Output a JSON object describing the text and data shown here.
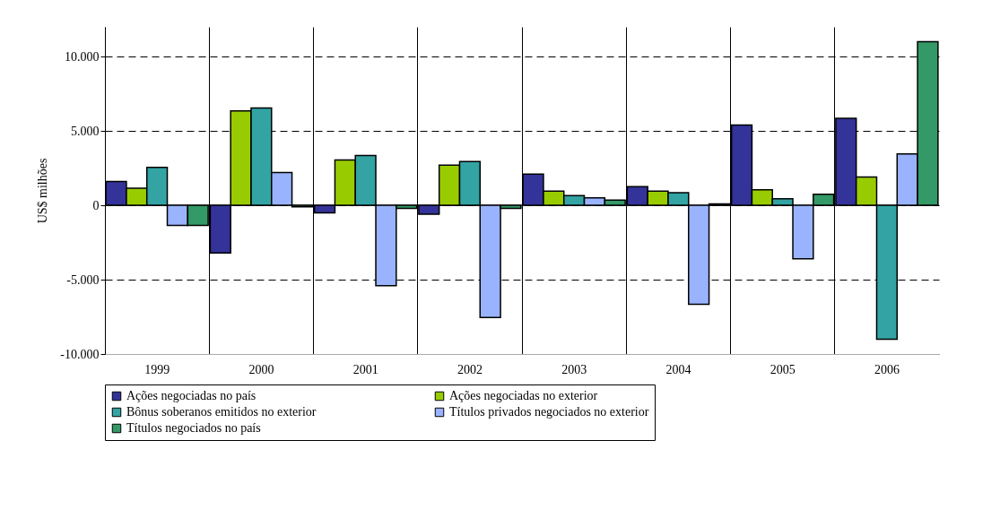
{
  "chart_data": {
    "type": "bar",
    "ylabel": "US$ milhões",
    "categories": [
      "1999",
      "2000",
      "2001",
      "2002",
      "2003",
      "2004",
      "2005",
      "2006"
    ],
    "series": [
      {
        "name": "Ações negociadas no país",
        "color": "#333399",
        "values": [
          1600,
          -3200,
          -500,
          -600,
          2100,
          1250,
          5400,
          5850
        ]
      },
      {
        "name": "Ações negociadas no exterior",
        "color": "#99cc00",
        "values": [
          1150,
          6350,
          3050,
          2700,
          950,
          950,
          1050,
          1900
        ]
      },
      {
        "name": "Bônus soberanos emitidos no exterior",
        "color": "#33a3a3",
        "values": [
          2550,
          6550,
          3350,
          2950,
          650,
          850,
          450,
          -9000
        ]
      },
      {
        "name": "Títulos privados negociados no exterior",
        "color": "#99b3ff",
        "values": [
          -1350,
          2200,
          -5400,
          -7550,
          500,
          -6650,
          -3600,
          3450
        ]
      },
      {
        "name": "Títulos negociados no país",
        "color": "#339966",
        "values": [
          -1350,
          -100,
          -200,
          -200,
          350,
          100,
          750,
          11000
        ]
      }
    ],
    "ylim": [
      -10000,
      12000
    ],
    "yticks": [
      {
        "value": -10000,
        "label": "-10.000"
      },
      {
        "value": -5000,
        "label": "-5.000"
      },
      0,
      {
        "value": 5000,
        "label": "5.000"
      },
      {
        "value": 10000,
        "label": "10.000"
      }
    ],
    "grid": true,
    "legend": "bottom"
  }
}
